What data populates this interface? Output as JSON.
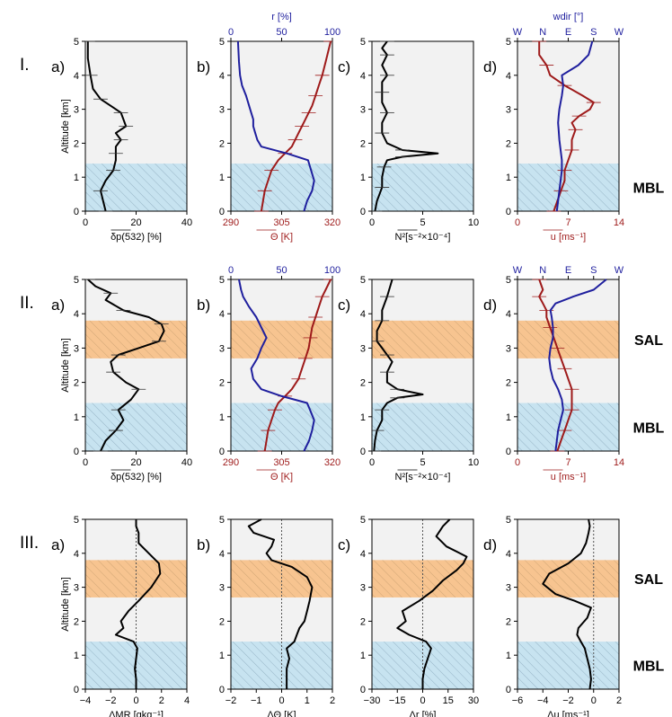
{
  "colors": {
    "black": "#000000",
    "blue": "#1f1f9e",
    "red": "#9e1a1a",
    "mbl": "#c7e3f0",
    "sal": "#f7c490",
    "panel_bg": "#f2f2f2",
    "grid_dot": "#555555"
  },
  "rows": [
    {
      "roman": "I.",
      "has_sal": false,
      "sal_label": "",
      "mbl_label": "MBL",
      "mbl_top_km": 1.4,
      "sal_range_km": null
    },
    {
      "roman": "II.",
      "has_sal": true,
      "sal_label": "SAL",
      "mbl_label": "MBL",
      "mbl_top_km": 1.4,
      "sal_range_km": [
        2.7,
        3.8
      ]
    },
    {
      "roman": "III.",
      "has_sal": true,
      "sal_label": "SAL",
      "mbl_label": "MBL",
      "mbl_top_km": 1.4,
      "sal_range_km": [
        2.7,
        3.8
      ]
    }
  ],
  "panel_letters": [
    "a)",
    "b)",
    "c)",
    "d)"
  ],
  "ylabel": "Altitude [km]",
  "yticks": [
    "0",
    "1",
    "2",
    "3",
    "4",
    "5"
  ],
  "ylim": [
    0,
    5
  ],
  "axes": {
    "dp": {
      "xlim": [
        0,
        40
      ],
      "ticks": [
        "0",
        "20",
        "40"
      ],
      "label": "δp(532) [%]"
    },
    "theta": {
      "xlim": [
        290,
        320
      ],
      "ticks": [
        "290",
        "305",
        "320"
      ],
      "label": "Θ [K]"
    },
    "r": {
      "xlim": [
        0,
        100
      ],
      "ticks": [
        "0",
        "50",
        "100"
      ],
      "label": "r [%]"
    },
    "n2": {
      "xlim": [
        0,
        10
      ],
      "ticks": [
        "0",
        "5",
        "10"
      ],
      "label": "N²[s⁻²×10⁻⁴]"
    },
    "u": {
      "xlim": [
        0,
        14
      ],
      "ticks": [
        "0",
        "7",
        "14"
      ],
      "label": "u [ms⁻¹]"
    },
    "wdir": {
      "xlim": [
        0,
        4
      ],
      "ticks": [
        "W",
        "N",
        "E",
        "S",
        "W"
      ],
      "label": "wdir [°]"
    },
    "dmr": {
      "xlim": [
        -4,
        4
      ],
      "ticks": [
        "−4",
        "−2",
        "0",
        "2",
        "4"
      ],
      "label": "ΔMR [gkg⁻¹]"
    },
    "dtheta": {
      "xlim": [
        -2,
        2
      ],
      "ticks": [
        "−2",
        "−1",
        "0",
        "1",
        "2"
      ],
      "label": "ΔΘ [K]"
    },
    "dr": {
      "xlim": [
        -30,
        30
      ],
      "ticks": [
        "−30",
        "−15",
        "0",
        "15",
        "30"
      ],
      "label": "Δr [%]"
    },
    "du": {
      "xlim": [
        -6,
        2
      ],
      "ticks": [
        "−6",
        "−4",
        "−2",
        "0",
        "2"
      ],
      "label": "Δu [ms⁻¹]"
    }
  },
  "chart_data": [
    {
      "type": "line",
      "panel": "I.a",
      "series": [
        {
          "name": "δp(532)",
          "x": [
            8,
            7,
            6,
            8,
            11,
            12,
            12,
            12,
            14,
            12,
            16,
            15,
            14,
            10,
            6,
            3,
            2,
            1,
            1
          ],
          "y": [
            0,
            0.3,
            0.6,
            0.9,
            1.2,
            1.5,
            1.7,
            1.9,
            2.1,
            2.3,
            2.5,
            2.7,
            2.9,
            3.1,
            3.3,
            3.6,
            4.0,
            4.5,
            5.0
          ]
        }
      ]
    },
    {
      "type": "line",
      "panel": "I.b",
      "series": [
        {
          "name": "Θ",
          "axis": "theta",
          "x": [
            299,
            299.5,
            300,
            301,
            302,
            304,
            306,
            308,
            309,
            310,
            311,
            312,
            313,
            314,
            315,
            316,
            317,
            318,
            319.5
          ],
          "y": [
            0,
            0.3,
            0.6,
            0.9,
            1.2,
            1.5,
            1.7,
            1.9,
            2.1,
            2.3,
            2.5,
            2.7,
            2.9,
            3.1,
            3.4,
            3.7,
            4.0,
            4.4,
            5.0
          ]
        },
        {
          "name": "r",
          "axis": "r",
          "x": [
            72,
            75,
            80,
            82,
            79,
            76,
            55,
            30,
            26,
            24,
            22,
            22,
            20,
            18,
            15,
            11,
            9,
            8,
            7
          ],
          "y": [
            0,
            0.3,
            0.6,
            0.9,
            1.2,
            1.5,
            1.7,
            1.9,
            2.1,
            2.3,
            2.5,
            2.7,
            2.9,
            3.1,
            3.4,
            3.7,
            4.0,
            4.4,
            5.0
          ]
        }
      ]
    },
    {
      "type": "line",
      "panel": "I.c",
      "series": [
        {
          "name": "N²",
          "x": [
            0.3,
            0.5,
            1,
            1,
            1.2,
            1.5,
            3,
            6.5,
            3,
            1.5,
            1,
            1,
            1.5,
            1,
            1,
            1,
            1.5,
            1,
            1.5,
            1,
            1.5
          ],
          "y": [
            0,
            0.3,
            0.7,
            1.0,
            1.3,
            1.5,
            1.6,
            1.7,
            1.8,
            2.0,
            2.3,
            2.6,
            2.9,
            3.2,
            3.5,
            3.8,
            4.0,
            4.3,
            4.6,
            4.8,
            5.0
          ]
        }
      ]
    },
    {
      "type": "line",
      "panel": "I.d",
      "series": [
        {
          "name": "u",
          "axis": "u",
          "x": [
            5,
            5.5,
            6,
            6.5,
            6.5,
            7,
            7.5,
            7.5,
            8,
            7.5,
            8.5,
            10,
            10.5,
            9,
            6.5,
            4.5,
            4,
            3,
            3
          ],
          "y": [
            0,
            0.3,
            0.6,
            0.9,
            1.2,
            1.5,
            1.8,
            2.1,
            2.4,
            2.6,
            2.8,
            3.0,
            3.2,
            3.4,
            3.7,
            4.0,
            4.3,
            4.6,
            5.0
          ]
        },
        {
          "name": "wdir",
          "axis": "wdir",
          "x": [
            1.55,
            1.6,
            1.65,
            1.7,
            1.75,
            1.75,
            1.7,
            1.65,
            1.62,
            1.6,
            1.62,
            1.65,
            1.7,
            1.75,
            1.8,
            1.75,
            2.4,
            2.8,
            2.95
          ],
          "y": [
            0,
            0.3,
            0.6,
            0.9,
            1.2,
            1.5,
            1.8,
            2.1,
            2.4,
            2.6,
            2.8,
            3.0,
            3.2,
            3.4,
            3.7,
            4.0,
            4.3,
            4.6,
            5.0
          ]
        }
      ]
    },
    {
      "type": "line",
      "panel": "II.a",
      "series": [
        {
          "name": "δp(532)",
          "x": [
            6,
            8,
            12,
            15,
            13,
            18,
            21,
            16,
            11,
            10,
            13,
            21,
            29,
            31,
            30,
            25,
            15,
            8,
            10,
            4,
            1
          ],
          "y": [
            0,
            0.3,
            0.6,
            0.9,
            1.2,
            1.5,
            1.8,
            2.0,
            2.3,
            2.6,
            2.8,
            3.0,
            3.2,
            3.5,
            3.7,
            3.9,
            4.1,
            4.4,
            4.6,
            4.8,
            5.0
          ]
        }
      ]
    },
    {
      "type": "line",
      "panel": "II.b",
      "series": [
        {
          "name": "Θ",
          "axis": "theta",
          "x": [
            300,
            300.5,
            301,
            302,
            303,
            304,
            306,
            308,
            310,
            311,
            312,
            313,
            313.5,
            314,
            315,
            316,
            317,
            318,
            319.5
          ],
          "y": [
            0,
            0.3,
            0.6,
            0.9,
            1.2,
            1.4,
            1.6,
            1.8,
            2.1,
            2.4,
            2.7,
            3.0,
            3.3,
            3.6,
            3.9,
            4.2,
            4.5,
            4.7,
            5.0
          ]
        },
        {
          "name": "r",
          "axis": "r",
          "x": [
            72,
            77,
            80,
            82,
            78,
            75,
            50,
            30,
            22,
            20,
            26,
            30,
            35,
            30,
            25,
            18,
            12,
            10,
            8
          ],
          "y": [
            0,
            0.3,
            0.6,
            0.9,
            1.2,
            1.4,
            1.6,
            1.8,
            2.1,
            2.4,
            2.7,
            3.0,
            3.3,
            3.6,
            3.9,
            4.2,
            4.5,
            4.7,
            5.0
          ]
        }
      ]
    },
    {
      "type": "line",
      "panel": "II.c",
      "series": [
        {
          "name": "N²",
          "x": [
            0.2,
            0.3,
            0.5,
            1,
            1,
            1.5,
            2.5,
            5,
            2.5,
            1.5,
            1.5,
            2,
            1.5,
            1,
            0.5,
            0.5,
            1,
            1,
            1.5,
            2
          ],
          "y": [
            0,
            0.3,
            0.6,
            0.9,
            1.2,
            1.4,
            1.55,
            1.65,
            1.8,
            2.0,
            2.3,
            2.6,
            2.8,
            3.0,
            3.2,
            3.5,
            3.8,
            4.1,
            4.5,
            5.0
          ]
        }
      ]
    },
    {
      "type": "line",
      "panel": "II.d",
      "series": [
        {
          "name": "u",
          "axis": "u",
          "x": [
            5.5,
            6,
            6.5,
            7,
            7.5,
            7.5,
            7.5,
            7,
            6.5,
            6,
            5.5,
            5,
            4.5,
            4,
            4,
            3.5,
            3,
            3.5,
            3
          ],
          "y": [
            0,
            0.3,
            0.6,
            0.9,
            1.2,
            1.5,
            1.8,
            2.1,
            2.4,
            2.7,
            3.0,
            3.3,
            3.6,
            3.9,
            4.1,
            4.3,
            4.5,
            4.7,
            5.0
          ]
        },
        {
          "name": "wdir",
          "axis": "wdir",
          "x": [
            1.5,
            1.55,
            1.6,
            1.7,
            1.8,
            1.75,
            1.6,
            1.4,
            1.3,
            1.25,
            1.3,
            1.4,
            1.4,
            1.35,
            1.3,
            1.5,
            2.2,
            3.0,
            3.5
          ],
          "y": [
            0,
            0.3,
            0.6,
            0.9,
            1.2,
            1.5,
            1.8,
            2.1,
            2.4,
            2.7,
            3.0,
            3.3,
            3.6,
            3.9,
            4.1,
            4.3,
            4.5,
            4.7,
            5.0
          ]
        }
      ]
    },
    {
      "type": "line",
      "panel": "III.a",
      "series": [
        {
          "name": "ΔMR",
          "x": [
            0,
            0,
            -0.1,
            0,
            0.1,
            -0.2,
            -1.6,
            -1,
            -1.2,
            -0.6,
            0.2,
            1.2,
            1.9,
            1.8,
            1.0,
            0.2,
            0.2,
            0,
            0
          ],
          "y": [
            0,
            0.3,
            0.6,
            0.9,
            1.2,
            1.4,
            1.6,
            1.8,
            2.0,
            2.3,
            2.6,
            3.0,
            3.4,
            3.7,
            4.0,
            4.3,
            4.6,
            4.8,
            5.0
          ]
        }
      ]
    },
    {
      "type": "line",
      "panel": "III.b",
      "series": [
        {
          "name": "ΔΘ",
          "x": [
            0.2,
            0.2,
            0.2,
            0.3,
            0.2,
            0.5,
            0.6,
            0.7,
            0.9,
            1.0,
            1.1,
            1.2,
            1.0,
            0.4,
            -0.4,
            -0.6,
            -0.4,
            -0.3,
            -1.1,
            -1.3,
            -0.8
          ],
          "y": [
            0,
            0.3,
            0.6,
            0.9,
            1.2,
            1.4,
            1.6,
            1.8,
            2.0,
            2.3,
            2.6,
            3.0,
            3.3,
            3.6,
            3.8,
            4.0,
            4.2,
            4.4,
            4.6,
            4.8,
            5.0
          ]
        }
      ]
    },
    {
      "type": "line",
      "panel": "III.c",
      "series": [
        {
          "name": "Δr",
          "x": [
            0,
            0,
            1,
            3,
            5,
            2,
            -8,
            -15,
            -10,
            -12,
            -2,
            6,
            12,
            20,
            24,
            26,
            14,
            8,
            12,
            16
          ],
          "y": [
            0,
            0.3,
            0.6,
            0.9,
            1.2,
            1.4,
            1.6,
            1.8,
            2.0,
            2.3,
            2.6,
            2.9,
            3.2,
            3.5,
            3.7,
            3.9,
            4.2,
            4.5,
            4.8,
            5.0
          ]
        }
      ]
    },
    {
      "type": "line",
      "panel": "III.d",
      "series": [
        {
          "name": "Δu",
          "x": [
            -0.3,
            -0.2,
            -0.3,
            -0.5,
            -0.7,
            -1.0,
            -1.3,
            -1.2,
            -0.5,
            -0.2,
            -1.5,
            -3.0,
            -4.0,
            -3.5,
            -2.0,
            -1.0,
            -0.6,
            -0.4,
            -0.3,
            -0.4
          ],
          "y": [
            0,
            0.3,
            0.6,
            0.9,
            1.2,
            1.4,
            1.6,
            1.8,
            2.1,
            2.4,
            2.6,
            2.8,
            3.1,
            3.4,
            3.7,
            4.0,
            4.3,
            4.6,
            4.8,
            5.0
          ]
        }
      ]
    }
  ]
}
